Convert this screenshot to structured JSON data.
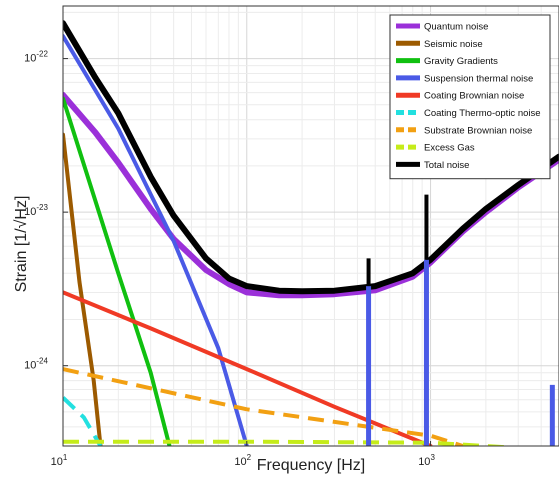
{
  "chart_data": {
    "type": "line",
    "xlabel": "Frequency [Hz]",
    "ylabel": "Strain [1/√Hz]",
    "x_scale": "log",
    "y_scale": "log",
    "xlim": [
      10,
      5000
    ],
    "ylim": [
      3e-25,
      2.2e-22
    ],
    "grid": true,
    "legend_position": "top-right",
    "x_ticks": [
      {
        "value": 10,
        "base": "10",
        "exp": "1"
      },
      {
        "value": 100,
        "base": "10",
        "exp": "2"
      },
      {
        "value": 1000,
        "base": "10",
        "exp": "3"
      }
    ],
    "y_ticks": [
      {
        "value": 1e-24,
        "base": "10",
        "exp": "-24"
      },
      {
        "value": 1e-23,
        "base": "10",
        "exp": "-23"
      },
      {
        "value": 1e-22,
        "base": "10",
        "exp": "-22"
      }
    ],
    "series": [
      {
        "name": "Quantum noise",
        "color": "#9b30d9",
        "dash": false,
        "width": 6,
        "points": [
          [
            10,
            5.8e-23
          ],
          [
            15,
            3.3e-23
          ],
          [
            20,
            2.1e-23
          ],
          [
            30,
            1.05e-23
          ],
          [
            40,
            6.7e-24
          ],
          [
            60,
            4.2e-24
          ],
          [
            80,
            3.4e-24
          ],
          [
            100,
            3e-24
          ],
          [
            150,
            2.88e-24
          ],
          [
            200,
            2.88e-24
          ],
          [
            300,
            2.92e-24
          ],
          [
            500,
            3.1e-24
          ],
          [
            800,
            3.8e-24
          ],
          [
            1000,
            4.7e-24
          ],
          [
            1500,
            7.5e-24
          ],
          [
            2000,
            1e-23
          ],
          [
            3000,
            1.45e-23
          ],
          [
            5000,
            2.2e-23
          ]
        ]
      },
      {
        "name": "Seismic noise",
        "color": "#9c5a00",
        "dash": false,
        "width": 4,
        "points": [
          [
            10,
            3.2e-23
          ],
          [
            12.3,
            3.5e-24
          ],
          [
            14.7,
            8e-25
          ],
          [
            16,
            3e-25
          ]
        ]
      },
      {
        "name": "Gravity Gradients",
        "color": "#10c010",
        "dash": false,
        "width": 4,
        "points": [
          [
            10,
            5.5e-23
          ],
          [
            20,
            4e-24
          ],
          [
            30,
            9e-25
          ],
          [
            38,
            3e-25
          ]
        ]
      },
      {
        "name": "Suspension thermal noise",
        "color": "#4a5ae6",
        "dash": false,
        "width": 4,
        "points": [
          [
            10,
            1.4e-22
          ],
          [
            20,
            3.5e-23
          ],
          [
            40,
            6.5e-24
          ],
          [
            70,
            1.3e-24
          ],
          [
            100,
            3e-25
          ]
        ]
      },
      {
        "name": "Coating Brownian noise",
        "color": "#f03a25",
        "dash": false,
        "width": 4,
        "points": [
          [
            10,
            3e-24
          ],
          [
            30,
            1.75e-24
          ],
          [
            100,
            9.5e-25
          ],
          [
            300,
            5.4e-25
          ],
          [
            1000,
            3e-25
          ]
        ]
      },
      {
        "name": "Coating Thermo-optic noise",
        "color": "#22e0e0",
        "dash": true,
        "width": 4,
        "points": [
          [
            10,
            6.2e-25
          ],
          [
            13,
            4.6e-25
          ],
          [
            16,
            3e-25
          ]
        ]
      },
      {
        "name": "Substrate Brownian noise",
        "color": "#f2a012",
        "dash": true,
        "width": 4,
        "points": [
          [
            10,
            9.5e-25
          ],
          [
            100,
            5.2e-25
          ],
          [
            1000,
            3.5e-25
          ],
          [
            1500,
            3e-25
          ]
        ]
      },
      {
        "name": "Excess Gas",
        "color": "#c5ec1a",
        "dash": true,
        "width": 4,
        "points": [
          [
            10,
            3.2e-25
          ],
          [
            100,
            3.2e-25
          ],
          [
            1000,
            3.15e-25
          ],
          [
            2000,
            3e-25
          ],
          [
            4000,
            2.85e-25
          ]
        ]
      },
      {
        "name": "Total noise",
        "color": "#000000",
        "dash": false,
        "width": 6,
        "points": [
          [
            10,
            1.7e-22
          ],
          [
            15,
            7.5e-23
          ],
          [
            20,
            4.4e-23
          ],
          [
            30,
            1.7e-23
          ],
          [
            40,
            9.5e-24
          ],
          [
            60,
            5e-24
          ],
          [
            80,
            3.7e-24
          ],
          [
            100,
            3.3e-24
          ],
          [
            150,
            3.08e-24
          ],
          [
            200,
            3.05e-24
          ],
          [
            300,
            3.08e-24
          ],
          [
            500,
            3.3e-24
          ],
          [
            800,
            4e-24
          ],
          [
            1000,
            4.9e-24
          ],
          [
            1500,
            7.8e-24
          ],
          [
            2000,
            1.05e-23
          ],
          [
            3000,
            1.5e-23
          ],
          [
            5000,
            2.3e-23
          ]
        ]
      }
    ],
    "spikes": [
      {
        "series": "Suspension thermal noise",
        "color": "#4a5ae6",
        "x": 460,
        "y_top": 3.3e-24,
        "width": 5
      },
      {
        "series": "Suspension thermal noise",
        "color": "#4a5ae6",
        "x": 950,
        "y_top": 4.9e-24,
        "width": 5
      },
      {
        "series": "Suspension thermal noise",
        "color": "#4a5ae6",
        "x": 4600,
        "y_top": 7.5e-25,
        "width": 5
      },
      {
        "series": "Total noise",
        "color": "#000000",
        "x": 460,
        "y_top": 5e-24,
        "y_bottom": 3.3e-24,
        "width": 4
      },
      {
        "series": "Total noise",
        "color": "#000000",
        "x": 950,
        "y_top": 1.3e-23,
        "y_bottom": 4.9e-24,
        "width": 4
      }
    ]
  }
}
